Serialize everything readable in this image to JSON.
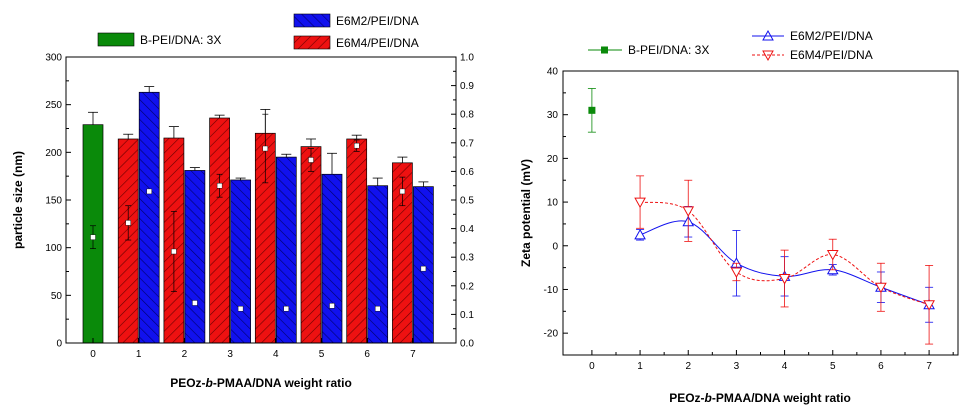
{
  "colors": {
    "bpei": "#0a8a0a",
    "e6m2": "#1111ee",
    "e6m4": "#ee1111",
    "text": "#000000"
  },
  "chart_data": [
    {
      "type": "bar",
      "xlabel_parts": [
        "PEOz-",
        "b",
        "-PMAA/DNA weight ratio"
      ],
      "ylabel": "particle size (nm)",
      "x_ticks": [
        "0",
        "1",
        "2",
        "3",
        "4",
        "5",
        "6",
        "7"
      ],
      "ylim": [
        0,
        300
      ],
      "y_ticks": [
        "0",
        "50",
        "100",
        "150",
        "200",
        "250",
        "300"
      ],
      "y2lim": [
        0,
        1.0
      ],
      "y2_ticks": [
        "0.0",
        "0.1",
        "0.2",
        "0.3",
        "0.4",
        "0.5",
        "0.6",
        "0.7",
        "0.8",
        "0.9",
        "1.0"
      ],
      "legend": [
        "B-PEI/DNA: 3X",
        "E6M2/PEI/DNA",
        "E6M4/PEI/DNA"
      ],
      "series": [
        {
          "name": "B-PEI/DNA: 3X",
          "color_key": "bpei",
          "pattern": "solid",
          "x": [
            0
          ],
          "values": [
            229
          ],
          "errors": [
            13
          ],
          "pdi": [
            0.37
          ],
          "pdi_err": [
            0.04
          ]
        },
        {
          "name": "E6M4/PEI/DNA",
          "color_key": "e6m4",
          "pattern": "hatch",
          "x": [
            1,
            2,
            3,
            4,
            5,
            6,
            7
          ],
          "values": [
            214,
            215,
            236,
            220,
            206,
            214,
            189
          ],
          "errors": [
            5,
            12,
            3,
            25,
            8,
            4,
            6
          ],
          "pdi": [
            0.42,
            0.32,
            0.55,
            0.68,
            0.64,
            0.69,
            0.53
          ],
          "pdi_err": [
            0.06,
            0.14,
            0.04,
            0.12,
            0.04,
            0.02,
            0.05
          ]
        },
        {
          "name": "E6M2/PEI/DNA",
          "color_key": "e6m2",
          "pattern": "hatch",
          "x": [
            1,
            2,
            3,
            4,
            5,
            6,
            7
          ],
          "values": [
            263,
            181,
            171,
            195,
            177,
            165,
            164
          ],
          "errors": [
            6,
            3,
            2,
            3,
            22,
            8,
            5
          ],
          "pdi": [
            0.53,
            0.14,
            0.12,
            0.12,
            0.13,
            0.12,
            0.26
          ],
          "pdi_err": [
            0,
            0,
            0,
            0,
            0,
            0,
            0
          ]
        }
      ]
    },
    {
      "type": "line",
      "xlabel_parts": [
        "PEOz-",
        "b",
        "-PMAA/DNA weight ratio"
      ],
      "ylabel": "Zeta potential (mV)",
      "xlim": [
        -0.6,
        7.6
      ],
      "x_ticks": [
        "0",
        "1",
        "2",
        "3",
        "4",
        "5",
        "6",
        "7"
      ],
      "ylim": [
        -25,
        40
      ],
      "y_ticks": [
        "-20",
        "-10",
        "0",
        "10",
        "20",
        "30",
        "40"
      ],
      "legend": [
        "B-PEI/DNA: 3X",
        "E6M2/PEI/DNA",
        "E6M4/PEI/DNA"
      ],
      "series": [
        {
          "name": "B-PEI/DNA: 3X",
          "color_key": "bpei",
          "marker": "square",
          "x": [
            0
          ],
          "y": [
            31
          ],
          "err": [
            5
          ]
        },
        {
          "name": "E6M2/PEI/DNA",
          "color_key": "e6m2",
          "marker": "triangle-up",
          "line": "solid",
          "x": [
            1,
            2,
            3,
            4,
            5,
            6,
            7
          ],
          "y": [
            2.5,
            5.5,
            -4,
            -7,
            -5.5,
            -9.5,
            -13.5
          ],
          "err": [
            1.2,
            3.5,
            7.5,
            4.5,
            1.2,
            3.5,
            4
          ]
        },
        {
          "name": "E6M4/PEI/DNA",
          "color_key": "e6m4",
          "marker": "triangle-down",
          "line": "dashed",
          "x": [
            1,
            2,
            3,
            4,
            5,
            6,
            7
          ],
          "y": [
            10,
            8,
            -6,
            -7.5,
            -2,
            -9.5,
            -13.5
          ],
          "err": [
            6,
            7,
            2,
            6.5,
            3.5,
            5.5,
            9
          ]
        }
      ]
    }
  ]
}
